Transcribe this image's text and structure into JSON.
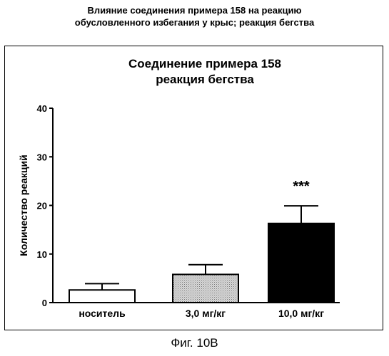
{
  "header": {
    "line1": "Влияние соединения примера 158 на реакцию",
    "line2": "обусловленного избегания у крыс; реакция бегства"
  },
  "caption": "Фиг. 10В",
  "chart_data": {
    "type": "bar",
    "title_lines": [
      "Соединение примера 158",
      "реакция бегства"
    ],
    "ylabel": "Количество реакций",
    "xlabel": "",
    "ylim": [
      0,
      40
    ],
    "yticks": [
      0,
      10,
      20,
      30,
      40
    ],
    "categories": [
      "носитель",
      "3,0 мг/кг",
      "10,0 мг/кг"
    ],
    "values": [
      2.6,
      5.8,
      16.3
    ],
    "errors": [
      1.3,
      2.0,
      3.6
    ],
    "fills": [
      "white",
      "stipple",
      "black"
    ],
    "annotations": [
      "",
      "",
      "***"
    ],
    "grid": false,
    "legend": "none"
  }
}
